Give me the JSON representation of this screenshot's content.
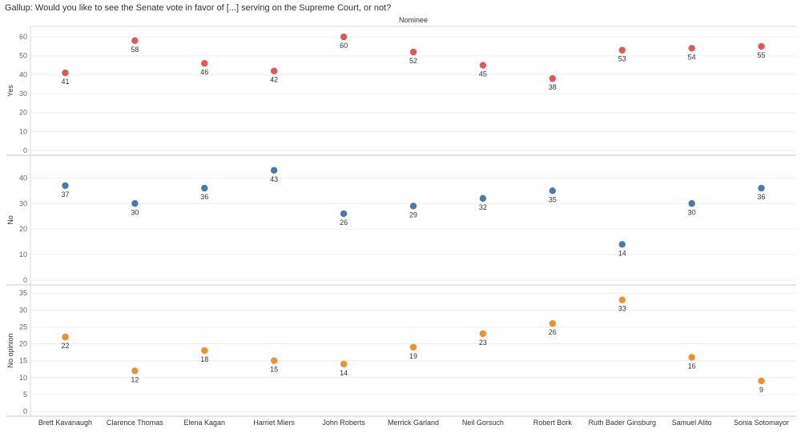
{
  "chart_data": {
    "type": "scatter",
    "title": "Gallup: Would you like to see the Senate vote in favor of [...] serving on the Supreme Court, or not?",
    "column_header": "Nominee",
    "categories": [
      "Brett Kavanaugh",
      "Clarence Thomas",
      "Elena Kagan",
      "Harriet Miers",
      "John Roberts",
      "Merrick Garland",
      "Neil Gorsuch",
      "Robert Bork",
      "Ruth Bader Ginsburg",
      "Samuel Alito",
      "Sonia Sotomayor"
    ],
    "panels": [
      {
        "name": "Yes",
        "color": "#e15759",
        "ylim": [
          0,
          63
        ],
        "ticks": [
          0,
          10,
          20,
          30,
          40,
          50,
          60
        ],
        "values": [
          41,
          58,
          46,
          42,
          60,
          52,
          45,
          38,
          53,
          54,
          55
        ]
      },
      {
        "name": "No",
        "color": "#4e79a7",
        "ylim": [
          0,
          47
        ],
        "ticks": [
          0,
          10,
          20,
          30,
          40
        ],
        "values": [
          37,
          30,
          36,
          43,
          26,
          29,
          32,
          35,
          14,
          30,
          36
        ]
      },
      {
        "name": "No opinion",
        "color": "#f28e2b",
        "ylim": [
          0,
          36
        ],
        "ticks": [
          0,
          5,
          10,
          15,
          20,
          25,
          30,
          35
        ],
        "values": [
          22,
          12,
          18,
          15,
          14,
          19,
          23,
          26,
          33,
          16,
          9
        ]
      }
    ]
  }
}
